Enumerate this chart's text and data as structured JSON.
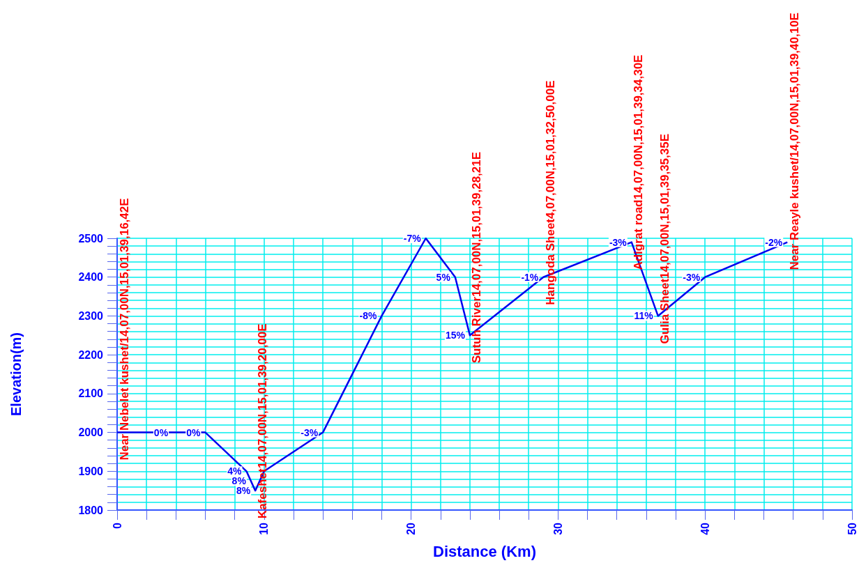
{
  "chart_data": {
    "type": "line",
    "xlabel": "Distance (Km)",
    "ylabel": "Elevation(m)",
    "x": [
      0,
      3.8,
      6,
      8.8,
      9.1,
      9.4,
      10,
      14,
      18,
      21,
      23,
      24,
      29,
      35,
      36.8,
      40,
      45.6
    ],
    "series": [
      {
        "color": "#0000ee",
        "values": [
          2000,
          2000,
          2000,
          1900,
          1875,
          1850,
          1900,
          2000,
          2300,
          2500,
          2400,
          2250,
          2400,
          2490,
          2300,
          2400,
          2490
        ]
      }
    ],
    "xlim": [
      0,
      50
    ],
    "xticks": [
      0,
      {
        "value": 2,
        "label": null
      },
      {
        "value": 4,
        "label": null
      },
      {
        "value": 6,
        "label": null
      },
      {
        "value": 8,
        "label": null
      },
      10,
      {
        "value": 12,
        "label": null
      },
      {
        "value": 14,
        "label": null
      },
      {
        "value": 16,
        "label": null
      },
      {
        "value": 18,
        "label": null
      },
      20,
      {
        "value": 22,
        "label": null
      },
      {
        "value": 24,
        "label": null
      },
      {
        "value": 26,
        "label": null
      },
      {
        "value": 28,
        "label": null
      },
      30,
      {
        "value": 32,
        "label": null
      },
      {
        "value": 34,
        "label": null
      },
      {
        "value": 36,
        "label": null
      },
      {
        "value": 38,
        "label": null
      },
      40,
      {
        "value": 42,
        "label": null
      },
      {
        "value": 44,
        "label": null
      },
      {
        "value": 46,
        "label": null
      },
      {
        "value": 48,
        "label": null
      },
      50
    ],
    "ylim": [
      1800,
      2500
    ],
    "yticks": [
      1800,
      {
        "value": 1820,
        "label": null
      },
      {
        "value": 1840,
        "label": null
      },
      {
        "value": 1860,
        "label": null
      },
      {
        "value": 1880,
        "label": null
      },
      1900,
      {
        "value": 1920,
        "label": null
      },
      {
        "value": 1940,
        "label": null
      },
      {
        "value": 1960,
        "label": null
      },
      {
        "value": 1980,
        "label": null
      },
      2000,
      {
        "value": 2020,
        "label": null
      },
      {
        "value": 2040,
        "label": null
      },
      {
        "value": 2060,
        "label": null
      },
      {
        "value": 2080,
        "label": null
      },
      2100,
      {
        "value": 2120,
        "label": null
      },
      {
        "value": 2140,
        "label": null
      },
      {
        "value": 2160,
        "label": null
      },
      {
        "value": 2180,
        "label": null
      },
      2200,
      {
        "value": 2220,
        "label": null
      },
      {
        "value": 2240,
        "label": null
      },
      {
        "value": 2260,
        "label": null
      },
      {
        "value": 2280,
        "label": null
      },
      2300,
      {
        "value": 2320,
        "label": null
      },
      {
        "value": 2340,
        "label": null
      },
      {
        "value": 2360,
        "label": null
      },
      {
        "value": 2380,
        "label": null
      },
      2400,
      {
        "value": 2420,
        "label": null
      },
      {
        "value": 2440,
        "label": null
      },
      {
        "value": 2460,
        "label": null
      },
      {
        "value": 2480,
        "label": null
      },
      2500
    ],
    "grid": true,
    "marker": "none",
    "line_style": "solid",
    "annotations": [
      {
        "text": "0%",
        "x": 3.8,
        "y": 2000
      },
      {
        "text": "0%",
        "x": 6,
        "y": 2000
      },
      {
        "text": "4%",
        "x": 8.8,
        "y": 1900
      },
      {
        "text": "8%",
        "x": 9.1,
        "y": 1875
      },
      {
        "text": "8%",
        "x": 9.4,
        "y": 1850
      },
      {
        "text": "-3%",
        "x": 14,
        "y": 2000
      },
      {
        "text": "-8%",
        "x": 18,
        "y": 2300
      },
      {
        "text": "-7%",
        "x": 21,
        "y": 2500
      },
      {
        "text": "5%",
        "x": 23,
        "y": 2400
      },
      {
        "text": "15%",
        "x": 24,
        "y": 2250
      },
      {
        "text": "-1%",
        "x": 29,
        "y": 2400
      },
      {
        "text": "-3%",
        "x": 35,
        "y": 2490
      },
      {
        "text": "11%",
        "x": 36.8,
        "y": 2300
      },
      {
        "text": "-3%",
        "x": 40,
        "y": 2400
      },
      {
        "text": "-2%",
        "x": 45.6,
        "y": 2490
      },
      {
        "text": "Near Nebelet kushet/14,07,00N,15,01,39,16,42E",
        "x": 0,
        "y": 2000
      },
      {
        "text": "Kafeshet14,07,00N,15,01,39,20,00E",
        "x": 9.4,
        "y": 1850
      },
      {
        "text": "Sutuh River14,07,00N,15,01,39,28,21E",
        "x": 24,
        "y": 2250
      },
      {
        "text": "Hangoda Sheet4,07,00N,15,01,32,50,00E",
        "x": 29,
        "y": 2400
      },
      {
        "text": "Adigrat road14,07,00N,15,01,39,34,30E",
        "x": 35,
        "y": 2490
      },
      {
        "text": "Gulia Sheet14,07,00N,15,01,39,35,35E",
        "x": 36.8,
        "y": 2300
      },
      {
        "text": "Near Reayle kushet/14,07,00N,15,01,39,40,10E",
        "x": 45.6,
        "y": 2490
      }
    ]
  }
}
